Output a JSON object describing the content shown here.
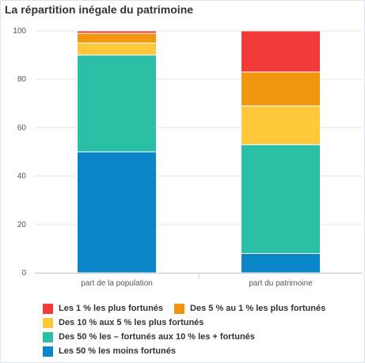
{
  "chart_data": {
    "type": "bar",
    "stacked": true,
    "title": "La répartition inégale du patrimoine",
    "categories": [
      "part de la population",
      "part du patrimoine"
    ],
    "ylim": [
      0,
      100
    ],
    "yticks": [
      0,
      20,
      40,
      60,
      80,
      100
    ],
    "grid": true,
    "legend": "bottom",
    "series": [
      {
        "name": "Les 50 % les moins fortunés",
        "color": "#0a86c8",
        "values": [
          50,
          8
        ]
      },
      {
        "name": "Des 50 % les – fortunés aux 10 % les + fortunés",
        "color": "#2bbfa8",
        "values": [
          40,
          45
        ]
      },
      {
        "name": "Des 10 % aux 5 % les plus fortunés",
        "color": "#ffc83a",
        "values": [
          5,
          16
        ]
      },
      {
        "name": "Des 5 % au 1 % les plus fortunés",
        "color": "#f0960f",
        "values": [
          4,
          14
        ]
      },
      {
        "name": "Les 1 % les plus fortunés",
        "color": "#f23a3a",
        "values": [
          1,
          17
        ]
      }
    ]
  }
}
